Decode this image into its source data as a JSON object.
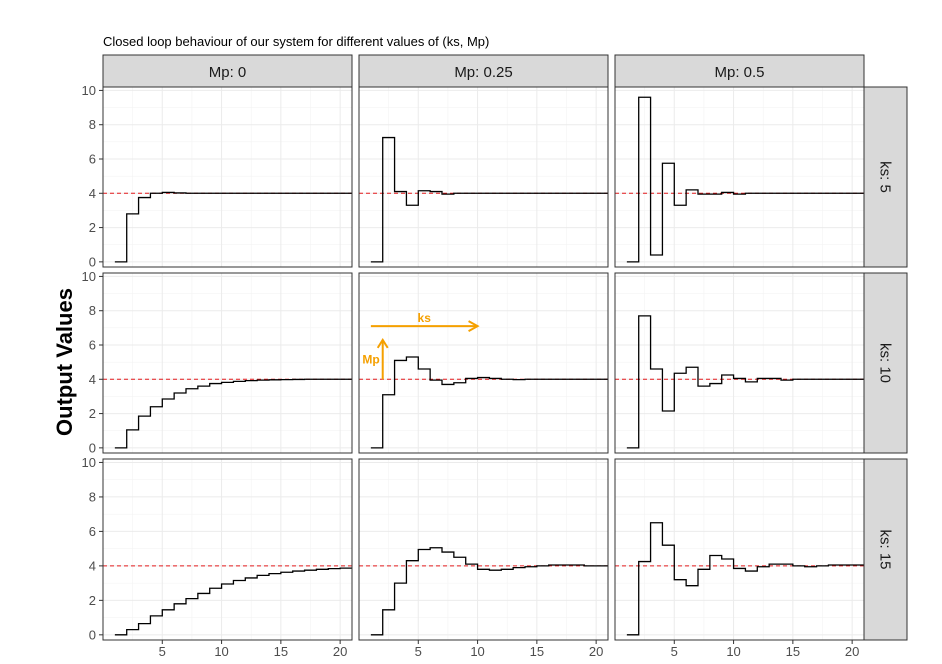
{
  "chart_data": {
    "type": "line",
    "title": "Closed loop behaviour of our system for different values of (ks, Mp)",
    "ylabel": "Output Values",
    "xlabel": "",
    "xlim": [
      0,
      21
    ],
    "ylim": [
      -0.3,
      10.2
    ],
    "x_ticks": [
      5,
      10,
      15,
      20
    ],
    "y_ticks": [
      0,
      2,
      4,
      6,
      8,
      10
    ],
    "reference_value": 4,
    "grid": true,
    "colors": {
      "series": "#000000",
      "reference": "#e41a1c",
      "annotation": "#f5a000",
      "strip_fill": "#d9d9d9",
      "grid": "#ebebeb"
    },
    "col_facets": [
      "Mp: 0",
      "Mp: 0.25",
      "Mp: 0.5"
    ],
    "row_facets": [
      "ks: 5",
      "ks: 10",
      "ks: 15"
    ],
    "panels": [
      {
        "row": 0,
        "col": 0,
        "x_start": 1,
        "values": [
          0,
          2.8,
          3.75,
          4.0,
          4.05,
          4.02,
          4.0,
          4.0,
          4.0,
          4.0,
          4.0,
          4.0,
          4.0,
          4.0,
          4.0,
          4.0,
          4.0,
          4.0,
          4.0,
          4.0
        ]
      },
      {
        "row": 0,
        "col": 1,
        "x_start": 1,
        "values": [
          0,
          7.25,
          4.1,
          3.3,
          4.15,
          4.1,
          3.95,
          4.0,
          4.0,
          4.0,
          4.0,
          4.0,
          4.0,
          4.0,
          4.0,
          4.0,
          4.0,
          4.0,
          4.0,
          4.0
        ]
      },
      {
        "row": 0,
        "col": 2,
        "x_start": 1,
        "values": [
          0,
          9.6,
          0.4,
          5.75,
          3.3,
          4.2,
          3.95,
          3.95,
          4.05,
          3.95,
          4.0,
          4.0,
          4.0,
          4.0,
          4.0,
          4.0,
          4.0,
          4.0,
          4.0,
          4.0
        ]
      },
      {
        "row": 1,
        "col": 0,
        "x_start": 1,
        "values": [
          0,
          1.05,
          1.85,
          2.4,
          2.85,
          3.2,
          3.45,
          3.6,
          3.75,
          3.82,
          3.88,
          3.92,
          3.95,
          3.97,
          3.98,
          3.99,
          4.0,
          4.0,
          4.0,
          4.0
        ]
      },
      {
        "row": 1,
        "col": 1,
        "x_start": 1,
        "values": [
          0,
          3.1,
          5.1,
          5.3,
          4.6,
          3.95,
          3.7,
          3.8,
          4.05,
          4.1,
          4.05,
          4.0,
          3.98,
          4.0,
          4.0,
          4.0,
          4.0,
          4.0,
          4.0,
          4.0
        ]
      },
      {
        "row": 1,
        "col": 2,
        "x_start": 1,
        "values": [
          0,
          7.7,
          4.6,
          2.15,
          4.35,
          4.7,
          3.6,
          3.75,
          4.25,
          4.05,
          3.85,
          4.05,
          4.05,
          3.95,
          4.0,
          4.0,
          4.0,
          4.0,
          4.0,
          4.0
        ]
      },
      {
        "row": 2,
        "col": 0,
        "x_start": 1,
        "values": [
          0,
          0.3,
          0.65,
          1.1,
          1.45,
          1.8,
          2.1,
          2.4,
          2.7,
          2.95,
          3.15,
          3.3,
          3.45,
          3.55,
          3.63,
          3.7,
          3.75,
          3.8,
          3.84,
          3.87
        ]
      },
      {
        "row": 2,
        "col": 1,
        "x_start": 1,
        "values": [
          0,
          1.45,
          3.0,
          4.3,
          4.95,
          5.05,
          4.8,
          4.5,
          4.1,
          3.8,
          3.75,
          3.8,
          3.9,
          3.95,
          4.0,
          4.05,
          4.05,
          4.05,
          4.0,
          4.0
        ]
      },
      {
        "row": 2,
        "col": 2,
        "x_start": 1,
        "values": [
          0,
          4.25,
          6.5,
          5.2,
          3.2,
          2.85,
          3.8,
          4.6,
          4.4,
          3.85,
          3.7,
          3.95,
          4.1,
          4.1,
          4.0,
          3.95,
          4.0,
          4.05,
          4.05,
          4.05
        ]
      }
    ],
    "annotations": {
      "panel": {
        "row": 1,
        "col": 1
      },
      "ks_label": "ks",
      "mp_label": "Mp",
      "ks_arrow": {
        "x_from": 1.0,
        "x_to": 10.0,
        "y": 7.1
      },
      "mp_arrow": {
        "x": 2.0,
        "y_from": 4.0,
        "y_to": 6.3
      }
    }
  }
}
